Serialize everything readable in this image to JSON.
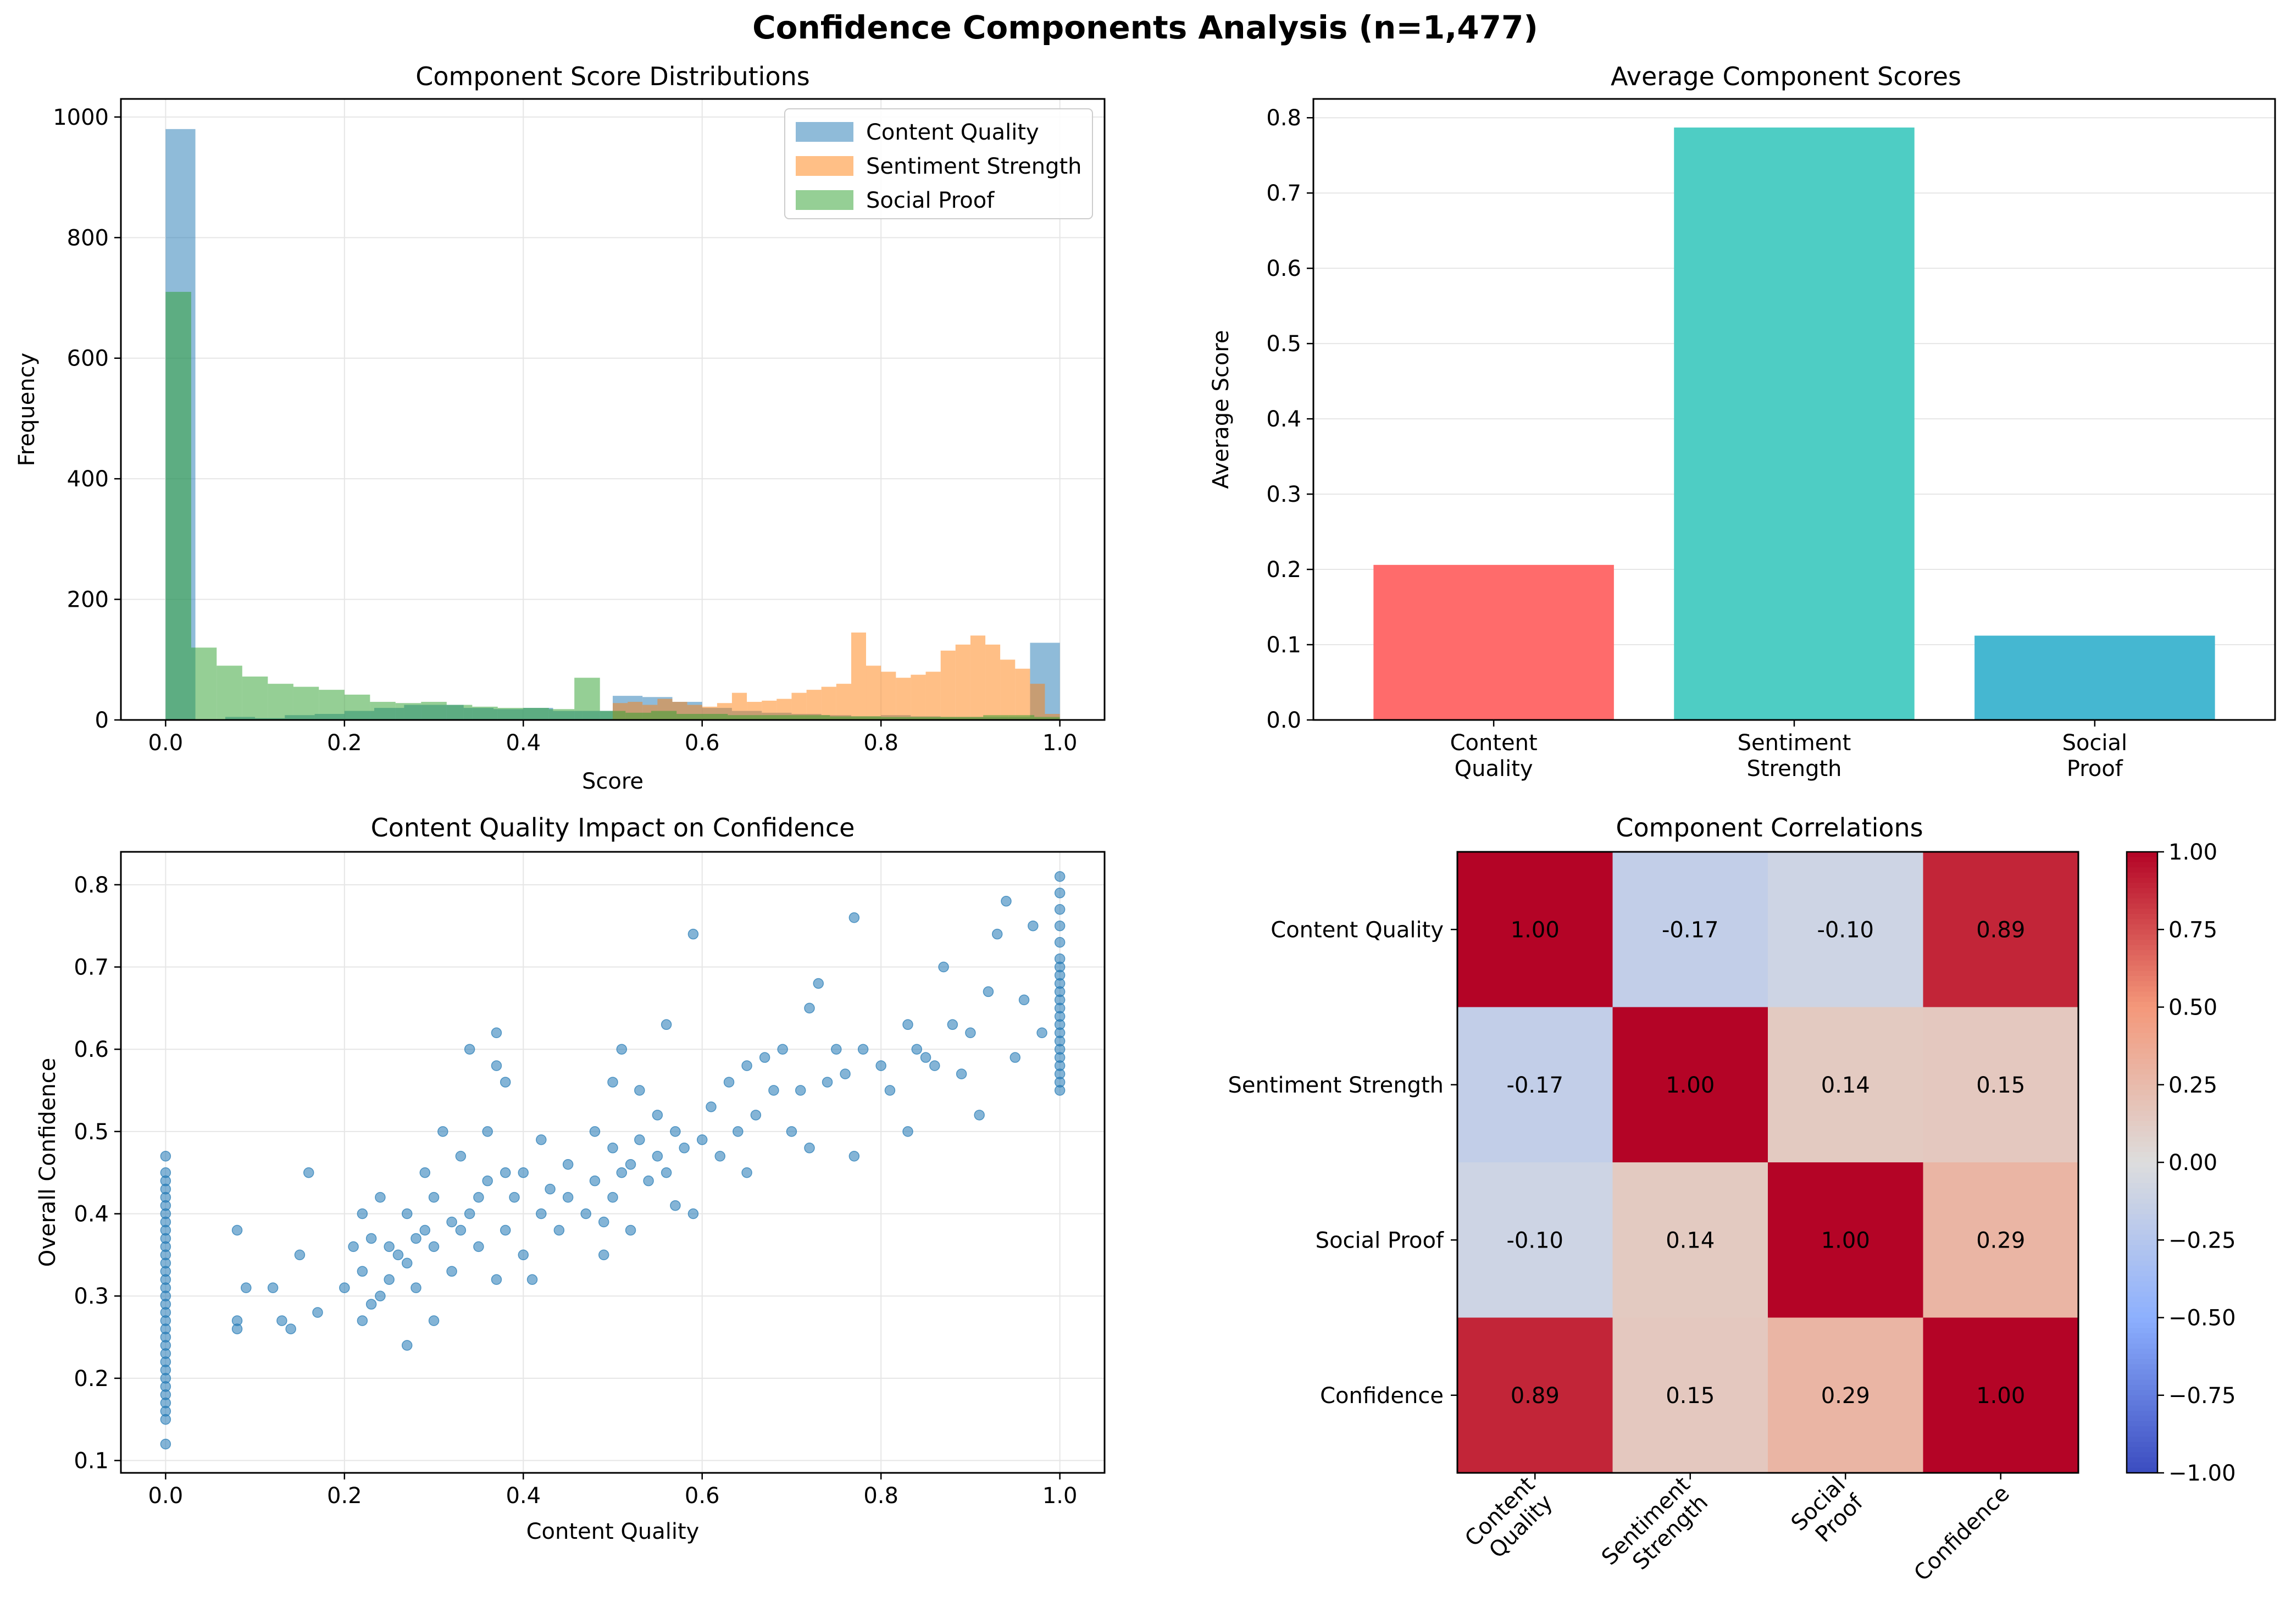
{
  "suptitle": "Confidence Components Analysis (n=1,477)",
  "colors": {
    "content_quality": "#1f77b4",
    "sentiment_strength": "#ff7f0e",
    "social_proof": "#2ca02c",
    "bar_content_quality": "#ff6b6b",
    "bar_sentiment_strength": "#4ecdc4",
    "bar_social_proof": "#45b7d1",
    "scatter": "#1f77b4"
  },
  "chart_data": [
    {
      "type": "bar",
      "subtype": "histogram",
      "title": "Component Score Distributions",
      "xlabel": "Score",
      "ylabel": "Frequency",
      "xlim": [
        -0.05,
        1.05
      ],
      "ylim": [
        0,
        1030
      ],
      "xticks": [
        "0.0",
        "0.2",
        "0.4",
        "0.6",
        "0.8",
        "1.0"
      ],
      "yticks": [
        "0",
        "200",
        "400",
        "600",
        "800",
        "1000"
      ],
      "grid": true,
      "legend_position": "top-right",
      "series": [
        {
          "name": "Content Quality",
          "bins": [
            0,
            0.0333,
            0.0667,
            0.1,
            0.1333,
            0.1667,
            0.2,
            0.2333,
            0.2667,
            0.3,
            0.3333,
            0.3667,
            0.4,
            0.4333,
            0.4667,
            0.5,
            0.5333,
            0.5667,
            0.6,
            0.6333,
            0.6667,
            0.7,
            0.7333,
            0.7667,
            0.8,
            0.8333,
            0.8667,
            0.9,
            0.9333,
            0.9667,
            1.0
          ],
          "values": [
            980,
            0,
            5,
            3,
            8,
            10,
            15,
            20,
            25,
            25,
            20,
            18,
            20,
            15,
            15,
            40,
            38,
            30,
            20,
            15,
            12,
            10,
            8,
            6,
            8,
            6,
            5,
            5,
            5,
            128
          ]
        },
        {
          "name": "Sentiment Strength",
          "bins": [
            0.5,
            0.5167,
            0.5333,
            0.55,
            0.5667,
            0.5833,
            0.6,
            0.6167,
            0.6333,
            0.65,
            0.6667,
            0.6833,
            0.7,
            0.7167,
            0.7333,
            0.75,
            0.7667,
            0.7833,
            0.8,
            0.8167,
            0.8333,
            0.85,
            0.8667,
            0.8833,
            0.9,
            0.9167,
            0.9333,
            0.95,
            0.9667,
            0.9833,
            1.0
          ],
          "values": [
            28,
            30,
            25,
            35,
            30,
            25,
            22,
            28,
            45,
            30,
            32,
            35,
            45,
            50,
            55,
            60,
            145,
            90,
            80,
            70,
            75,
            80,
            115,
            125,
            140,
            125,
            100,
            85,
            60,
            10
          ]
        },
        {
          "name": "Social Proof",
          "bins": [
            0,
            0.0286,
            0.0571,
            0.0857,
            0.1143,
            0.1429,
            0.1714,
            0.2,
            0.2286,
            0.2571,
            0.2857,
            0.3143,
            0.3429,
            0.3714,
            0.4,
            0.4286,
            0.4571,
            0.4857,
            0.5143,
            0.5429,
            0.5714,
            0.6,
            0.6286,
            0.6571,
            0.6857,
            0.7143,
            0.7429,
            0.7714,
            0.8,
            0.8286,
            0.8571,
            0.8857,
            0.9143,
            0.9429,
            0.9714,
            1.0
          ],
          "values": [
            710,
            120,
            90,
            72,
            60,
            55,
            50,
            42,
            30,
            28,
            30,
            25,
            22,
            20,
            20,
            18,
            70,
            15,
            12,
            15,
            10,
            10,
            8,
            8,
            8,
            8,
            6,
            6,
            5,
            5,
            5,
            5,
            8,
            8,
            5
          ]
        }
      ]
    },
    {
      "type": "bar",
      "title": "Average Component Scores",
      "xlabel": "",
      "ylabel": "Average Score",
      "categories": [
        "Content\nQuality",
        "Sentiment\nStrength",
        "Social\nProof"
      ],
      "values": [
        0.206,
        0.787,
        0.112
      ],
      "ylim": [
        0,
        0.825
      ],
      "yticks": [
        "0.0",
        "0.1",
        "0.2",
        "0.3",
        "0.4",
        "0.5",
        "0.6",
        "0.7",
        "0.8"
      ],
      "grid": true
    },
    {
      "type": "scatter",
      "title": "Content Quality Impact on Confidence",
      "xlabel": "Content Quality",
      "ylabel": "Overall Confidence",
      "xlim": [
        -0.05,
        1.05
      ],
      "ylim": [
        0.085,
        0.84
      ],
      "xticks": [
        "0.0",
        "0.2",
        "0.4",
        "0.6",
        "0.8",
        "1.0"
      ],
      "yticks": [
        "0.1",
        "0.2",
        "0.3",
        "0.4",
        "0.5",
        "0.6",
        "0.7",
        "0.8"
      ],
      "grid": true,
      "points": [
        [
          0,
          0.12
        ],
        [
          0,
          0.15
        ],
        [
          0,
          0.16
        ],
        [
          0,
          0.17
        ],
        [
          0,
          0.18
        ],
        [
          0,
          0.19
        ],
        [
          0,
          0.2
        ],
        [
          0,
          0.21
        ],
        [
          0,
          0.22
        ],
        [
          0,
          0.23
        ],
        [
          0,
          0.24
        ],
        [
          0,
          0.25
        ],
        [
          0,
          0.26
        ],
        [
          0,
          0.27
        ],
        [
          0,
          0.28
        ],
        [
          0,
          0.29
        ],
        [
          0,
          0.3
        ],
        [
          0,
          0.31
        ],
        [
          0,
          0.32
        ],
        [
          0,
          0.33
        ],
        [
          0,
          0.34
        ],
        [
          0,
          0.35
        ],
        [
          0,
          0.36
        ],
        [
          0,
          0.37
        ],
        [
          0,
          0.38
        ],
        [
          0,
          0.39
        ],
        [
          0,
          0.4
        ],
        [
          0,
          0.41
        ],
        [
          0,
          0.42
        ],
        [
          0,
          0.43
        ],
        [
          0,
          0.44
        ],
        [
          0,
          0.45
        ],
        [
          0,
          0.47
        ],
        [
          0.08,
          0.27
        ],
        [
          0.08,
          0.26
        ],
        [
          0.08,
          0.38
        ],
        [
          0.09,
          0.31
        ],
        [
          0.12,
          0.31
        ],
        [
          0.13,
          0.27
        ],
        [
          0.14,
          0.26
        ],
        [
          0.15,
          0.35
        ],
        [
          0.16,
          0.45
        ],
        [
          0.17,
          0.28
        ],
        [
          0.2,
          0.31
        ],
        [
          0.21,
          0.36
        ],
        [
          0.22,
          0.33
        ],
        [
          0.22,
          0.4
        ],
        [
          0.22,
          0.27
        ],
        [
          0.23,
          0.29
        ],
        [
          0.23,
          0.37
        ],
        [
          0.24,
          0.42
        ],
        [
          0.24,
          0.3
        ],
        [
          0.25,
          0.36
        ],
        [
          0.25,
          0.32
        ],
        [
          0.26,
          0.35
        ],
        [
          0.27,
          0.24
        ],
        [
          0.27,
          0.34
        ],
        [
          0.27,
          0.4
        ],
        [
          0.28,
          0.31
        ],
        [
          0.28,
          0.37
        ],
        [
          0.29,
          0.38
        ],
        [
          0.29,
          0.45
        ],
        [
          0.3,
          0.36
        ],
        [
          0.3,
          0.27
        ],
        [
          0.3,
          0.42
        ],
        [
          0.31,
          0.5
        ],
        [
          0.32,
          0.33
        ],
        [
          0.32,
          0.39
        ],
        [
          0.33,
          0.47
        ],
        [
          0.33,
          0.38
        ],
        [
          0.34,
          0.6
        ],
        [
          0.34,
          0.4
        ],
        [
          0.35,
          0.42
        ],
        [
          0.35,
          0.36
        ],
        [
          0.36,
          0.5
        ],
        [
          0.36,
          0.44
        ],
        [
          0.37,
          0.32
        ],
        [
          0.37,
          0.58
        ],
        [
          0.37,
          0.62
        ],
        [
          0.38,
          0.56
        ],
        [
          0.38,
          0.38
        ],
        [
          0.38,
          0.45
        ],
        [
          0.39,
          0.42
        ],
        [
          0.4,
          0.35
        ],
        [
          0.4,
          0.45
        ],
        [
          0.41,
          0.32
        ],
        [
          0.42,
          0.49
        ],
        [
          0.42,
          0.4
        ],
        [
          0.43,
          0.43
        ],
        [
          0.44,
          0.38
        ],
        [
          0.45,
          0.46
        ],
        [
          0.45,
          0.42
        ],
        [
          0.47,
          0.4
        ],
        [
          0.48,
          0.44
        ],
        [
          0.48,
          0.5
        ],
        [
          0.49,
          0.35
        ],
        [
          0.49,
          0.39
        ],
        [
          0.5,
          0.56
        ],
        [
          0.5,
          0.48
        ],
        [
          0.5,
          0.42
        ],
        [
          0.51,
          0.6
        ],
        [
          0.51,
          0.45
        ],
        [
          0.52,
          0.38
        ],
        [
          0.52,
          0.46
        ],
        [
          0.53,
          0.49
        ],
        [
          0.53,
          0.55
        ],
        [
          0.54,
          0.44
        ],
        [
          0.55,
          0.52
        ],
        [
          0.55,
          0.47
        ],
        [
          0.56,
          0.63
        ],
        [
          0.56,
          0.45
        ],
        [
          0.57,
          0.5
        ],
        [
          0.57,
          0.41
        ],
        [
          0.58,
          0.48
        ],
        [
          0.59,
          0.74
        ],
        [
          0.59,
          0.4
        ],
        [
          0.6,
          0.49
        ],
        [
          0.61,
          0.53
        ],
        [
          0.62,
          0.47
        ],
        [
          0.63,
          0.56
        ],
        [
          0.64,
          0.5
        ],
        [
          0.65,
          0.58
        ],
        [
          0.65,
          0.45
        ],
        [
          0.66,
          0.52
        ],
        [
          0.67,
          0.59
        ],
        [
          0.68,
          0.55
        ],
        [
          0.69,
          0.6
        ],
        [
          0.7,
          0.5
        ],
        [
          0.71,
          0.55
        ],
        [
          0.72,
          0.65
        ],
        [
          0.72,
          0.48
        ],
        [
          0.73,
          0.68
        ],
        [
          0.74,
          0.56
        ],
        [
          0.75,
          0.6
        ],
        [
          0.76,
          0.57
        ],
        [
          0.77,
          0.76
        ],
        [
          0.77,
          0.47
        ],
        [
          0.78,
          0.6
        ],
        [
          0.8,
          0.58
        ],
        [
          0.81,
          0.55
        ],
        [
          0.83,
          0.5
        ],
        [
          0.83,
          0.63
        ],
        [
          0.84,
          0.6
        ],
        [
          0.85,
          0.59
        ],
        [
          0.86,
          0.58
        ],
        [
          0.87,
          0.7
        ],
        [
          0.88,
          0.63
        ],
        [
          0.89,
          0.57
        ],
        [
          0.9,
          0.62
        ],
        [
          0.91,
          0.52
        ],
        [
          0.92,
          0.67
        ],
        [
          0.93,
          0.74
        ],
        [
          0.94,
          0.78
        ],
        [
          0.95,
          0.59
        ],
        [
          0.96,
          0.66
        ],
        [
          0.97,
          0.75
        ],
        [
          0.98,
          0.62
        ],
        [
          1,
          0.55
        ],
        [
          1,
          0.56
        ],
        [
          1,
          0.57
        ],
        [
          1,
          0.58
        ],
        [
          1,
          0.59
        ],
        [
          1,
          0.6
        ],
        [
          1,
          0.61
        ],
        [
          1,
          0.62
        ],
        [
          1,
          0.63
        ],
        [
          1,
          0.64
        ],
        [
          1,
          0.65
        ],
        [
          1,
          0.66
        ],
        [
          1,
          0.67
        ],
        [
          1,
          0.68
        ],
        [
          1,
          0.69
        ],
        [
          1,
          0.7
        ],
        [
          1,
          0.71
        ],
        [
          1,
          0.73
        ],
        [
          1,
          0.75
        ],
        [
          1,
          0.77
        ],
        [
          1,
          0.79
        ],
        [
          1,
          0.81
        ]
      ]
    },
    {
      "type": "heatmap",
      "title": "Component Correlations",
      "rows": [
        "Content Quality",
        "Sentiment Strength",
        "Social Proof",
        "Confidence"
      ],
      "columns": [
        "Content\nQuality",
        "Sentiment\nStrength",
        "Social\nProof",
        "Confidence"
      ],
      "values": [
        [
          1.0,
          -0.17,
          -0.1,
          0.89
        ],
        [
          -0.17,
          1.0,
          0.14,
          0.15
        ],
        [
          -0.1,
          0.14,
          1.0,
          0.29
        ],
        [
          0.89,
          0.15,
          0.29,
          1.0
        ]
      ],
      "cell_labels": [
        [
          "1.00",
          "-0.17",
          "-0.10",
          "0.89"
        ],
        [
          "-0.17",
          "1.00",
          "0.14",
          "0.15"
        ],
        [
          "-0.10",
          "0.14",
          "1.00",
          "0.29"
        ],
        [
          "0.89",
          "0.15",
          "0.29",
          "1.00"
        ]
      ],
      "colormap": "coolwarm",
      "vmin": -1.0,
      "vmax": 1.0,
      "colorbar_ticks": [
        "1.00",
        "0.75",
        "0.50",
        "0.25",
        "0.00",
        "−0.25",
        "−0.50",
        "−0.75",
        "−1.00"
      ]
    }
  ]
}
